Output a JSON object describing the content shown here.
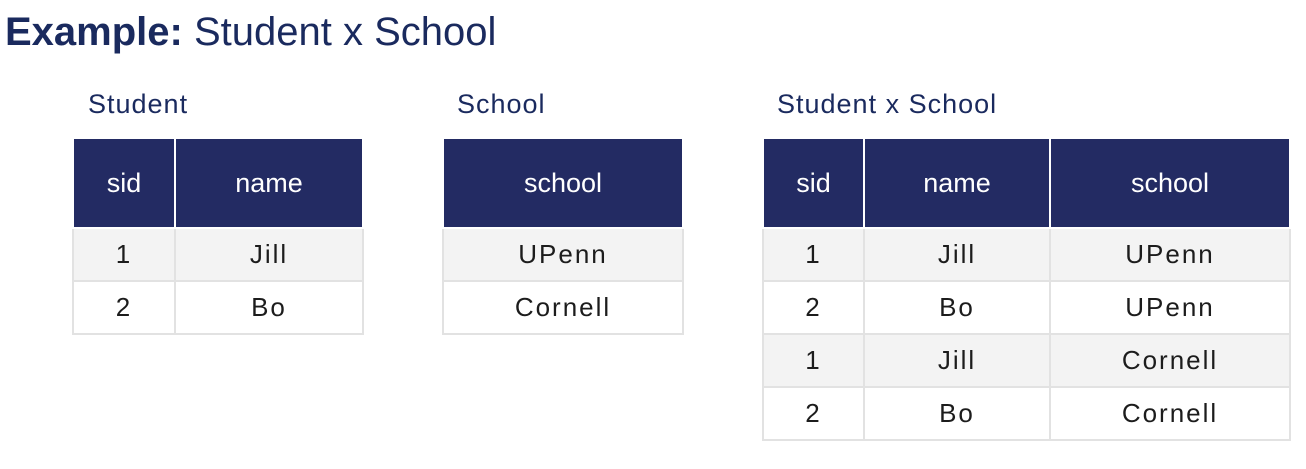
{
  "title": {
    "bold": "Example:",
    "rest": " Student x School"
  },
  "colors": {
    "title_text": "#1a2a5e",
    "header_bg": "#232b63",
    "header_text": "#ffffff",
    "row_alt_bg": "#f3f3f3",
    "border": "#e2e2e2"
  },
  "tables": {
    "student": {
      "caption": "Student",
      "headers": [
        "sid",
        "name"
      ],
      "rows": [
        [
          "1",
          "Jill"
        ],
        [
          "2",
          "Bo"
        ]
      ]
    },
    "school": {
      "caption": "School",
      "headers": [
        "school"
      ],
      "rows": [
        [
          "UPenn"
        ],
        [
          "Cornell"
        ]
      ]
    },
    "product": {
      "caption": "Student x School",
      "headers": [
        "sid",
        "name",
        "school"
      ],
      "rows": [
        [
          "1",
          "Jill",
          "UPenn"
        ],
        [
          "2",
          "Bo",
          "UPenn"
        ],
        [
          "1",
          "Jill",
          "Cornell"
        ],
        [
          "2",
          "Bo",
          "Cornell"
        ]
      ]
    }
  }
}
